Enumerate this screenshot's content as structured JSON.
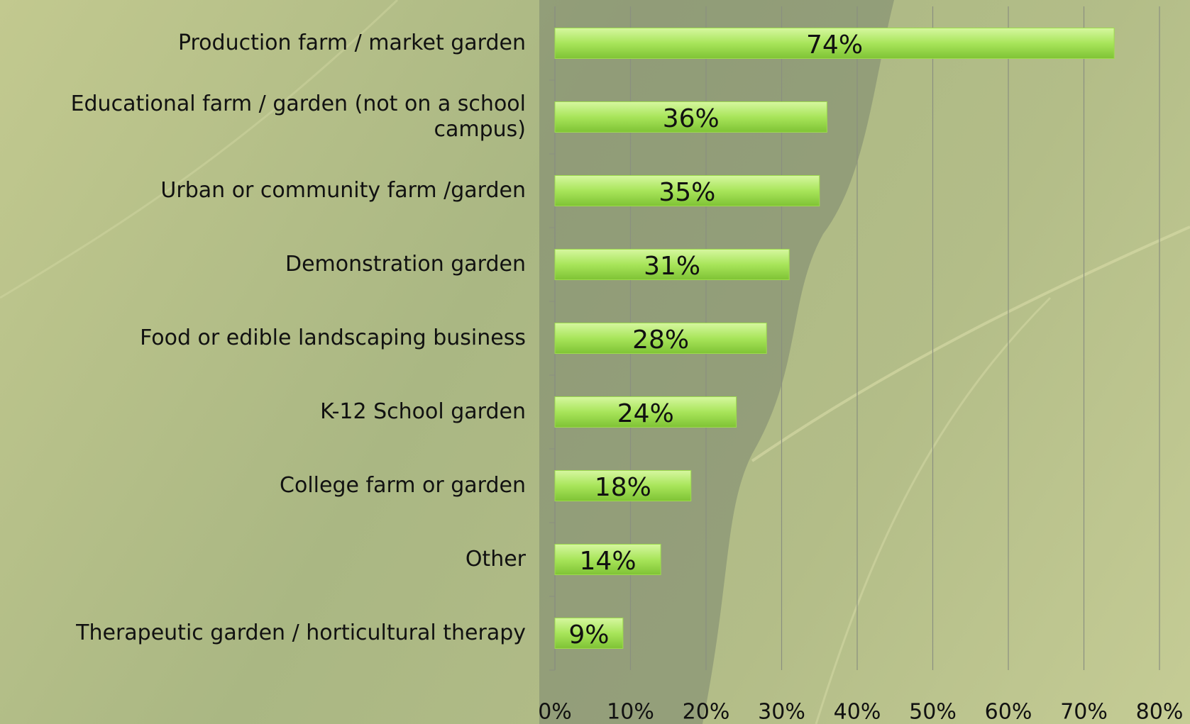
{
  "chart_data": {
    "type": "bar",
    "orientation": "horizontal",
    "categories": [
      "Production farm / market garden",
      "Educational farm / garden (not on a school campus)",
      "Urban or community farm /garden",
      "Demonstration garden",
      "Food  or edible landscaping business",
      "K-12 School garden",
      "College farm or garden",
      "Other",
      "Therapeutic garden / horticultural therapy"
    ],
    "values": [
      74,
      36,
      35,
      31,
      28,
      24,
      18,
      14,
      9
    ],
    "value_labels": [
      "74%",
      "36%",
      "35%",
      "31%",
      "28%",
      "24%",
      "18%",
      "14%",
      "9%"
    ],
    "color": "#9ddc4c",
    "xlim": [
      0,
      80
    ],
    "xticks": [
      {
        "value": 0,
        "label": "0%"
      },
      {
        "value": 10,
        "label": "10%"
      },
      {
        "value": 20,
        "label": "20%"
      },
      {
        "value": 30,
        "label": "30%"
      },
      {
        "value": 40,
        "label": "40%"
      },
      {
        "value": 50,
        "label": "50%"
      },
      {
        "value": 60,
        "label": "60%"
      },
      {
        "value": 70,
        "label": "70%"
      },
      {
        "value": 80,
        "label": "80%"
      }
    ],
    "grid": true
  }
}
